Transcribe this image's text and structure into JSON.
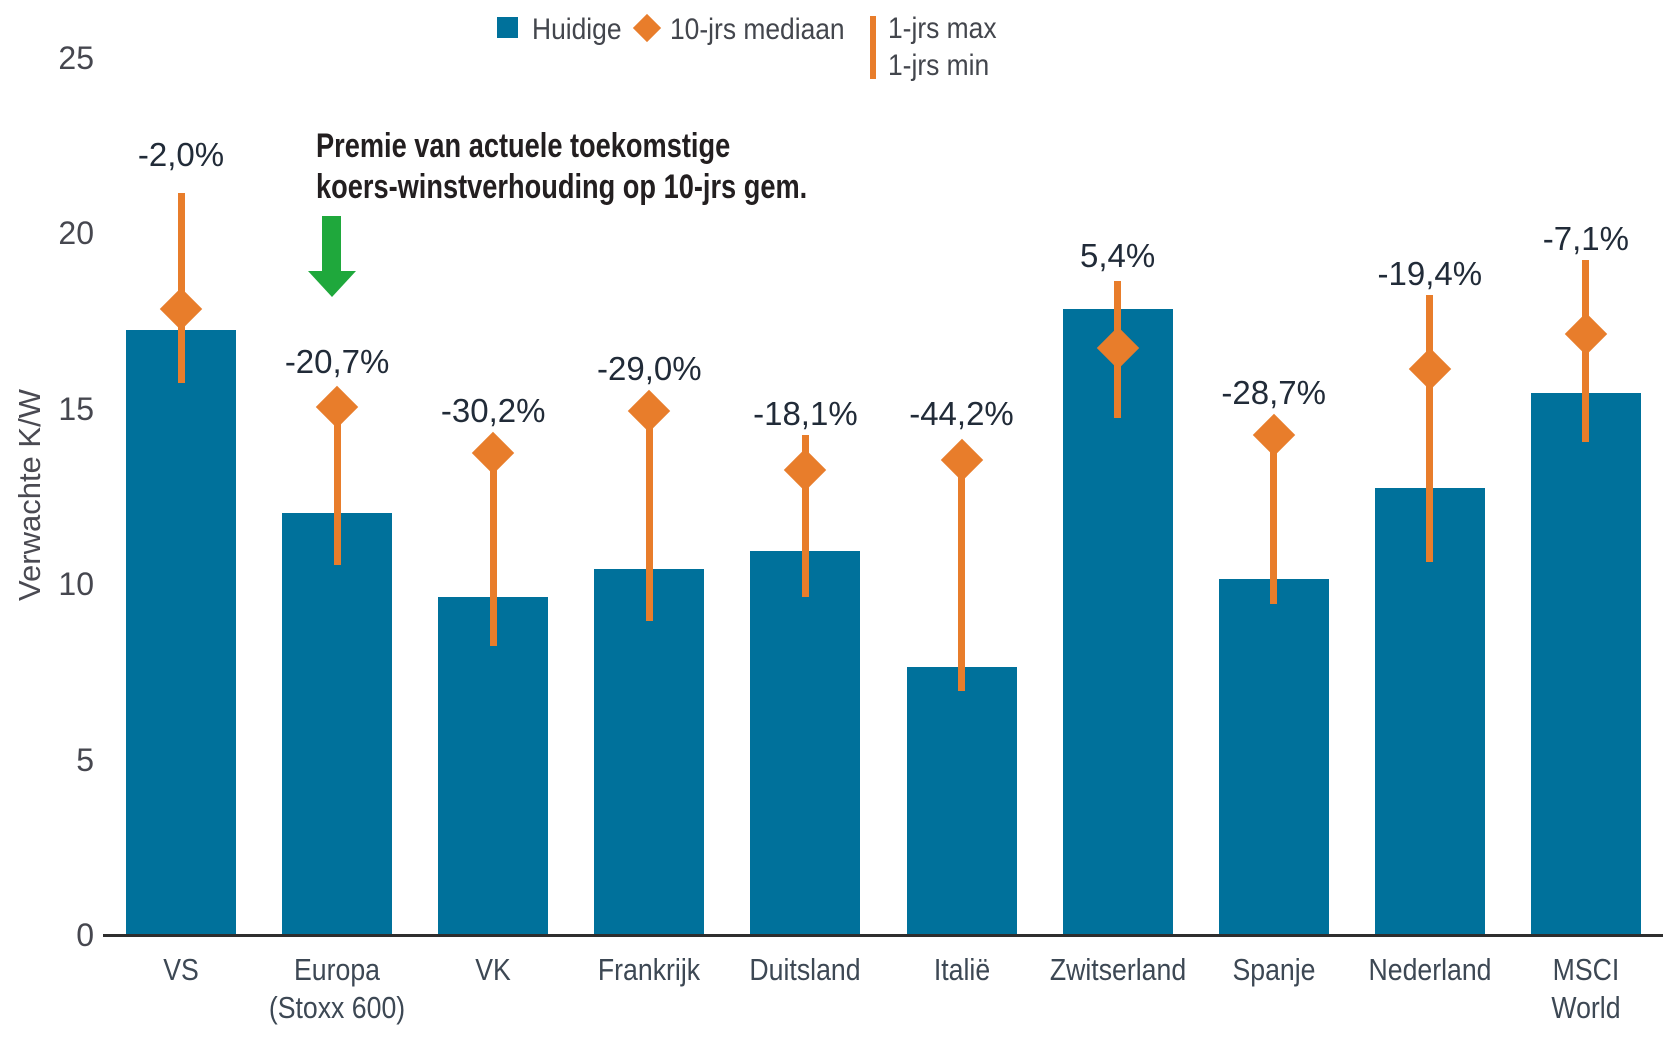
{
  "colors": {
    "bar_blue": "#00719b",
    "orange": "#e87d2b",
    "green": "#1fa83c",
    "axis_line": "#2e2e2e",
    "tick_text": "#46474f",
    "category_text": "#3d4854",
    "point_label_text": "#212b38",
    "annotation_text": "#231f20",
    "legend_text": "#43464d"
  },
  "legend": {
    "huidige_label": "Huidige",
    "mediaan_label": "10-jrs mediaan",
    "max_label": "1-jrs max",
    "min_label": "1-jrs min"
  },
  "annotation": {
    "lines": [
      "Premie van actuele toekomstige",
      "koers-winstverhouding op 10-jrs gem."
    ],
    "arrow_icon": "green-down-arrow"
  },
  "chart_data": {
    "type": "bar",
    "title": "",
    "xlabel": "",
    "ylabel": "Verwachte K/W",
    "ylim": [
      0,
      25
    ],
    "yticks": [
      0,
      5,
      10,
      15,
      20,
      25
    ],
    "grid": false,
    "legend_position": "top-center",
    "categories": [
      "VS",
      "Europa (Stoxx 600)",
      "VK",
      "Frankrijk",
      "Duitsland",
      "Italië",
      "Zwitserland",
      "Spanje",
      "Nederland",
      "MSCI World"
    ],
    "category_display_lines": [
      [
        "VS"
      ],
      [
        "Europa",
        "(Stoxx 600)"
      ],
      [
        "VK"
      ],
      [
        "Frankrijk"
      ],
      [
        "Duitsland"
      ],
      [
        "Italië"
      ],
      [
        "Zwitserland"
      ],
      [
        "Spanje"
      ],
      [
        "Nederland"
      ],
      [
        "MSCI",
        "World"
      ]
    ],
    "series": [
      {
        "name": "Huidige",
        "mark": "bar",
        "values": [
          17.3,
          12.1,
          9.7,
          10.5,
          11.0,
          7.7,
          17.9,
          10.2,
          12.8,
          15.5
        ]
      },
      {
        "name": "10-jrs mediaan",
        "mark": "diamond",
        "values": [
          17.9,
          15.1,
          13.8,
          15.0,
          13.3,
          13.6,
          16.8,
          14.3,
          16.2,
          17.2
        ]
      },
      {
        "name": "1-jrs max",
        "mark": "errorbar-top",
        "values": [
          21.2,
          15.1,
          14.1,
          15.0,
          14.3,
          13.6,
          18.7,
          14.3,
          18.3,
          19.3
        ]
      },
      {
        "name": "1-jrs min",
        "mark": "errorbar-bottom",
        "values": [
          15.8,
          10.6,
          8.3,
          9.0,
          9.7,
          7.0,
          14.8,
          9.5,
          10.7,
          14.1
        ]
      }
    ],
    "point_labels": [
      "-2,0%",
      "-20,7%",
      "-30,2%",
      "-29,0%",
      "-18,1%",
      "-44,2%",
      "5,4%",
      "-28,7%",
      "-19,4%",
      "-7,1%"
    ],
    "point_label_y": [
      22.3,
      16.4,
      15.0,
      16.2,
      14.9,
      14.9,
      19.4,
      15.5,
      18.9,
      19.9
    ]
  }
}
